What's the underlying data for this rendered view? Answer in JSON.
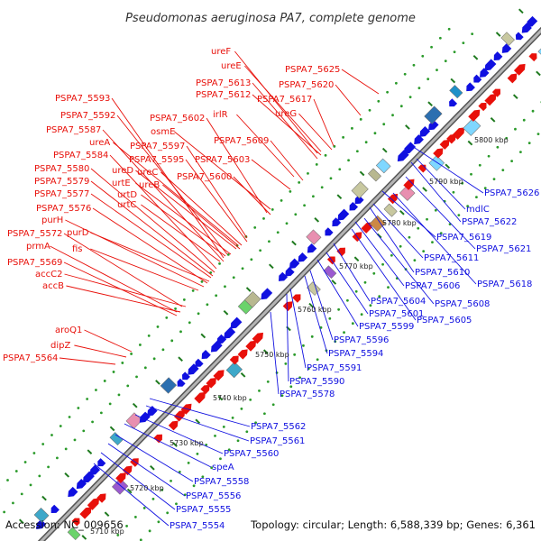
{
  "title": "Pseudomonas aeruginosa PA7, complete genome",
  "footer": {
    "accession": "Accession: NC_009656",
    "summary": "Topology: circular; Length: 6,588,339 bp; Genes: 6,361"
  },
  "colors": {
    "forward": "#e8100a",
    "reverse": "#1010e0",
    "backbone": "#888888",
    "tick": "#1f7a1f",
    "dot": "#2a9a2a"
  },
  "kbp_labels": [
    "5710 kbp",
    "5720 kbp",
    "5730 kbp",
    "5740 kbp",
    "5750 kbp",
    "5760 kbp",
    "5770 kbp",
    "5780 kbp",
    "5790 kbp",
    "5800 kbp"
  ],
  "forward_genes": [
    "ureF",
    "ureE",
    "PSPA7_5625",
    "PSPA7_5613",
    "PSPA7_5620",
    "PSPA7_5612",
    "PSPA7_5617",
    "ureG",
    "PSPA7_5593",
    "irlR",
    "PSPA7_5592",
    "PSPA7_5602",
    "PSPA7_5587",
    "osmE",
    "PSPA7_5609",
    "ureA",
    "PSPA7_5597",
    "PSPA7_5584",
    "PSPA7_5595",
    "PSPA7_5603",
    "PSPA7_5580",
    "ureD",
    "ureC",
    "PSPA7_5600",
    "PSPA7_5579",
    "urtE",
    "ureB",
    "PSPA7_5577",
    "urtD",
    "urtC",
    "PSPA7_5576",
    "purH",
    "purD",
    "PSPA7_5572",
    "fis",
    "prmA",
    "PSPA7_5569",
    "accC2",
    "accB",
    "aroQ1",
    "dipZ",
    "PSPA7_5564"
  ],
  "reverse_genes": [
    "PSPA7_5626",
    "mdlC",
    "PSPA7_5622",
    "PSPA7_5619",
    "PSPA7_5621",
    "PSPA7_5611",
    "PSPA7_5610",
    "PSPA7_5618",
    "PSPA7_5606",
    "PSPA7_5604",
    "PSPA7_5608",
    "PSPA7_5601",
    "PSPA7_5605",
    "PSPA7_5599",
    "PSPA7_5596",
    "PSPA7_5594",
    "PSPA7_5591",
    "PSPA7_5590",
    "PSPA7_5578",
    "PSPA7_5562",
    "PSPA7_5561",
    "PSPA7_5560",
    "speA",
    "PSPA7_5558",
    "PSPA7_5556",
    "PSPA7_5555",
    "PSPA7_5554"
  ]
}
